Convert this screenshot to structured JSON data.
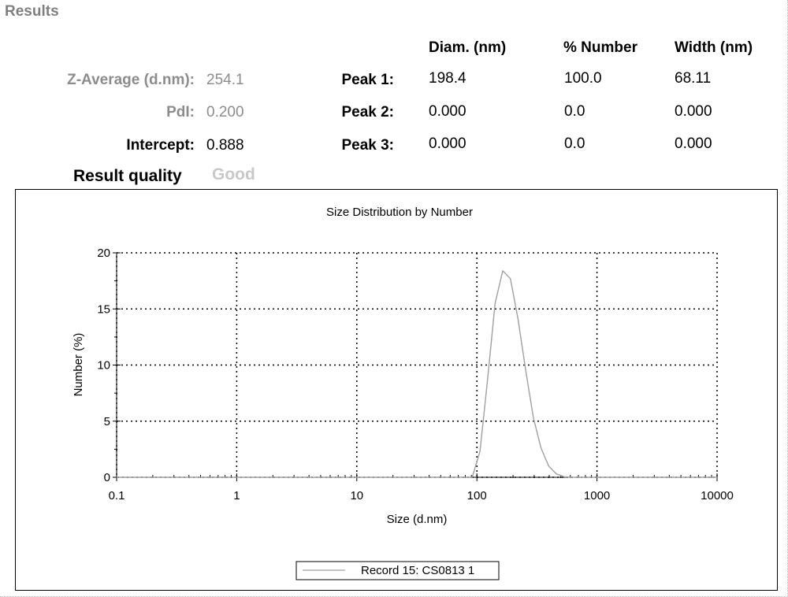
{
  "section_title": "Results",
  "summary": {
    "z_average": {
      "label": "Z-Average (d.nm):",
      "value": "254.1"
    },
    "pdi": {
      "label": "PdI:",
      "value": "0.200"
    },
    "intercept": {
      "label": "Intercept:",
      "value": "0.888"
    },
    "quality": {
      "label": "Result quality",
      "value": "Good"
    }
  },
  "peaks_table": {
    "headers": [
      "Diam. (nm)",
      "% Number",
      "Width (nm)"
    ],
    "rows": [
      {
        "label": "Peak 1:",
        "diam": "198.4",
        "number": "100.0",
        "width": "68.11"
      },
      {
        "label": "Peak 2:",
        "diam": "0.000",
        "number": "0.0",
        "width": "0.000"
      },
      {
        "label": "Peak 3:",
        "diam": "0.000",
        "number": "0.0",
        "width": "0.000"
      }
    ]
  },
  "colors": {
    "series": "#a0a0a0",
    "label_gray": "#8c8c8c",
    "title_gray": "#7f7f7f"
  },
  "chart_data": {
    "type": "line",
    "title": "Size Distribution by Number",
    "xlabel": "Size (d.nm)",
    "ylabel": "Number (%)",
    "x_scale": "log",
    "xlim": [
      0.1,
      10000
    ],
    "ylim": [
      0,
      20
    ],
    "x_ticks": [
      "0.1",
      "1",
      "10",
      "100",
      "1000",
      "10000"
    ],
    "y_ticks": [
      "0",
      "5",
      "10",
      "15",
      "20"
    ],
    "grid": true,
    "legend_position": "bottom-center",
    "series": [
      {
        "name": "Record 15: CS0813 1",
        "x": [
          0.1,
          91.3,
          106,
          122.4,
          141.8,
          164.2,
          190.1,
          220.2,
          255,
          295.3,
          342,
          396.1,
          458.7,
          531.2,
          615.1,
          10000
        ],
        "y": [
          0,
          0,
          2.3,
          8.6,
          15.5,
          18.4,
          17.7,
          14.1,
          9.5,
          5.3,
          2.6,
          1.0,
          0.3,
          0.05,
          0,
          0
        ]
      }
    ]
  }
}
